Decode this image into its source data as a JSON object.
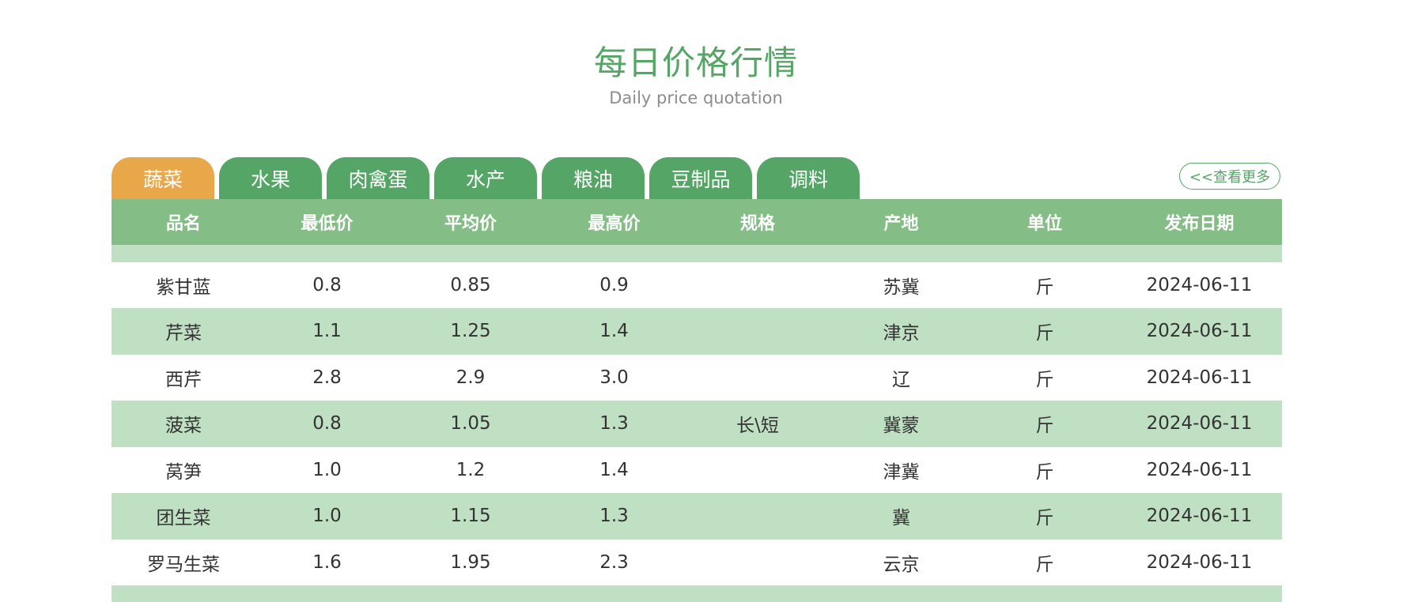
{
  "header": {
    "title": "每日价格行情",
    "subtitle": "Daily price quotation"
  },
  "tabs": [
    {
      "label": "蔬菜",
      "active": true
    },
    {
      "label": "水果",
      "active": false
    },
    {
      "label": "肉禽蛋",
      "active": false
    },
    {
      "label": "水产",
      "active": false
    },
    {
      "label": "粮油",
      "active": false
    },
    {
      "label": "豆制品",
      "active": false
    },
    {
      "label": "调料",
      "active": false
    }
  ],
  "more_link": "<<查看更多",
  "table": {
    "columns": [
      "品名",
      "最低价",
      "平均价",
      "最高价",
      "规格",
      "产地",
      "单位",
      "发布日期"
    ],
    "rows": [
      [
        "",
        "",
        "",
        "",
        "",
        "",
        "",
        ""
      ],
      [
        "紫甘蓝",
        "0.8",
        "0.85",
        "0.9",
        "",
        "苏冀",
        "斤",
        "2024-06-11"
      ],
      [
        "芹菜",
        "1.1",
        "1.25",
        "1.4",
        "",
        "津京",
        "斤",
        "2024-06-11"
      ],
      [
        "西芹",
        "2.8",
        "2.9",
        "3.0",
        "",
        "辽",
        "斤",
        "2024-06-11"
      ],
      [
        "菠菜",
        "0.8",
        "1.05",
        "1.3",
        "长\\短",
        "冀蒙",
        "斤",
        "2024-06-11"
      ],
      [
        "莴笋",
        "1.0",
        "1.2",
        "1.4",
        "",
        "津冀",
        "斤",
        "2024-06-11"
      ],
      [
        "团生菜",
        "1.0",
        "1.15",
        "1.3",
        "",
        "冀",
        "斤",
        "2024-06-11"
      ],
      [
        "罗马生菜",
        "1.6",
        "1.95",
        "2.3",
        "",
        "云京",
        "斤",
        "2024-06-11"
      ],
      [
        "",
        "",
        "",
        "",
        "",
        "",
        "",
        ""
      ]
    ]
  },
  "colors": {
    "accent_green": "#55a566",
    "active_tab": "#e8a84a",
    "header_row": "#85bd87",
    "stripe_row": "#bfe0c2"
  }
}
